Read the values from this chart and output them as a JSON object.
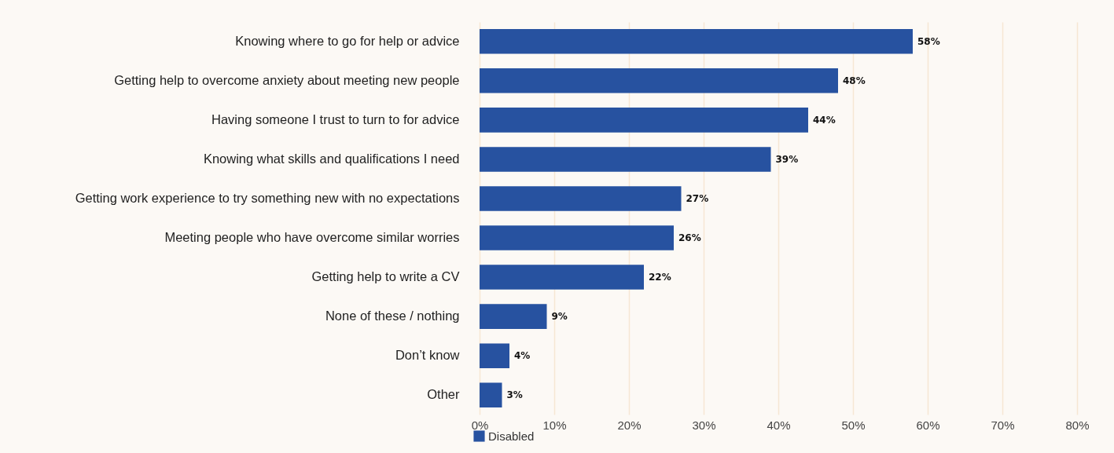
{
  "chart_data": {
    "type": "bar",
    "orientation": "horizontal",
    "categories": [
      "Knowing where to go for help or advice",
      "Getting help to overcome anxiety about meeting new people",
      "Having someone I trust to turn to for advice",
      "Knowing what skills and qualifications I need",
      "Getting work experience to try something new with no expectations",
      "Meeting people who have overcome similar worries",
      "Getting help to write a CV",
      "None of these / nothing",
      "Don’t know",
      "Other"
    ],
    "series": [
      {
        "name": "Disabled",
        "color": "#2752a0",
        "values": [
          58,
          48,
          44,
          39,
          27,
          26,
          22,
          9,
          4,
          3
        ],
        "value_labels": [
          "58%",
          "48%",
          "44%",
          "39%",
          "27%",
          "26%",
          "22%",
          "9%",
          "4%",
          "3%"
        ]
      }
    ],
    "xlim": [
      0,
      80
    ],
    "xticks": [
      {
        "value": 0,
        "label": "0%"
      },
      {
        "value": 10,
        "label": "10%"
      },
      {
        "value": 20,
        "label": "20%"
      },
      {
        "value": 30,
        "label": "30%"
      },
      {
        "value": 40,
        "label": "40%"
      },
      {
        "value": 50,
        "label": "50%"
      },
      {
        "value": 60,
        "label": "60%"
      },
      {
        "value": 70,
        "label": "70%"
      },
      {
        "value": 80,
        "label": "80%"
      }
    ],
    "grid": "x",
    "legend": "bottom left"
  }
}
